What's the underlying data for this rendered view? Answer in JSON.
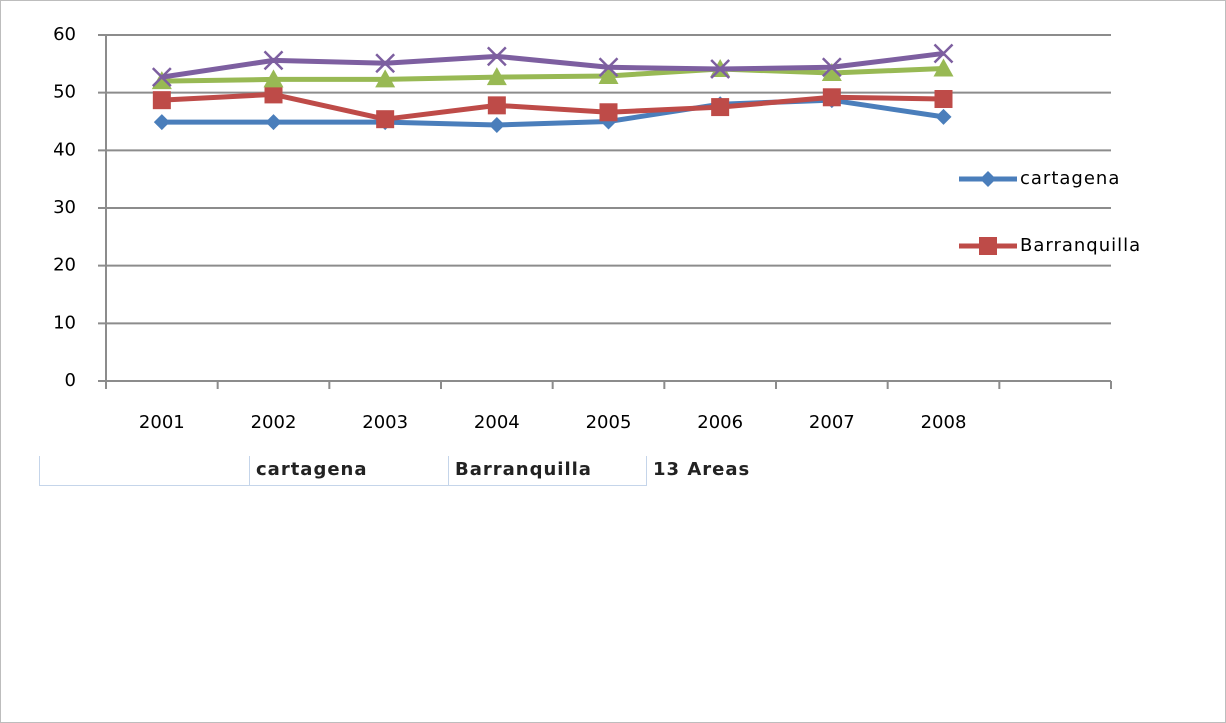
{
  "chart_data": {
    "type": "line",
    "categories": [
      "2001",
      "2002",
      "2003",
      "2004",
      "2005",
      "2006",
      "2007",
      "2008",
      null
    ],
    "series": [
      {
        "name": "cartagena",
        "color": "#4a7ebb",
        "marker": "diamond",
        "values": [
          44.9,
          44.9,
          44.9,
          44.4,
          45,
          48,
          48.7,
          45.8,
          null
        ]
      },
      {
        "name": "Barranquilla",
        "color": "#be4b48",
        "marker": "square",
        "values": [
          48.7,
          49.7,
          45.4,
          47.8,
          46.6,
          47.5,
          49.2,
          48.9,
          null
        ]
      },
      {
        "color": "#98b954",
        "marker": "triangle",
        "values": [
          52,
          52.3,
          52.3,
          52.7,
          52.9,
          54.1,
          53.4,
          54.2,
          null
        ]
      },
      {
        "color": "#7d5fa0",
        "marker": "x",
        "values": [
          52.7,
          55.6,
          55.1,
          56.3,
          54.4,
          54.1,
          54.4,
          56.8,
          null
        ]
      }
    ],
    "ylim": [
      0,
      60
    ],
    "yticks": [
      0,
      10,
      20,
      30,
      40,
      50,
      60
    ],
    "grid": true,
    "legend": "right"
  },
  "sheet_header": [
    "cartagena",
    "Barranquilla",
    "13 Areas"
  ]
}
